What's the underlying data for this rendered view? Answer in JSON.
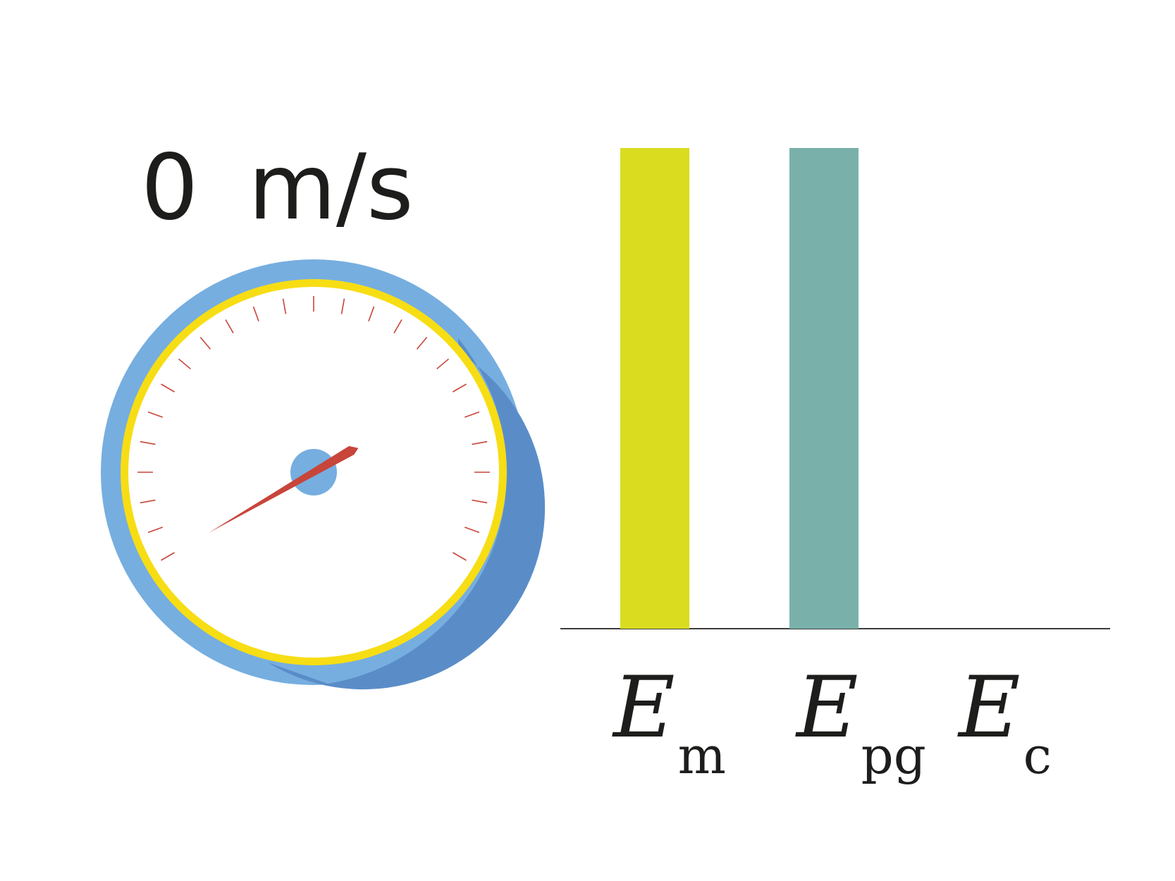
{
  "speed": {
    "value": "0",
    "unit": "m/s"
  },
  "speedometer": {
    "needle_fraction": 0.0,
    "colors": {
      "outer_ring": "#76aee0",
      "outer_ring_shade": "#5a8dc8",
      "inner_ring": "#f7dd14",
      "face": "#ffffff",
      "ticks": "#c8453a",
      "needle": "#c8453a",
      "hub": "#76aee0"
    }
  },
  "chart_data": {
    "type": "bar",
    "categories": [
      {
        "main": "E",
        "sub": "m"
      },
      {
        "main": "E",
        "sub": "pg"
      },
      {
        "main": "E",
        "sub": "c"
      }
    ],
    "values": [
      1.0,
      1.0,
      0.0
    ],
    "ylim": [
      0,
      1
    ],
    "colors": [
      "#d9dc1f",
      "#79b1aa",
      "#e0e0e0"
    ],
    "grid": false
  }
}
